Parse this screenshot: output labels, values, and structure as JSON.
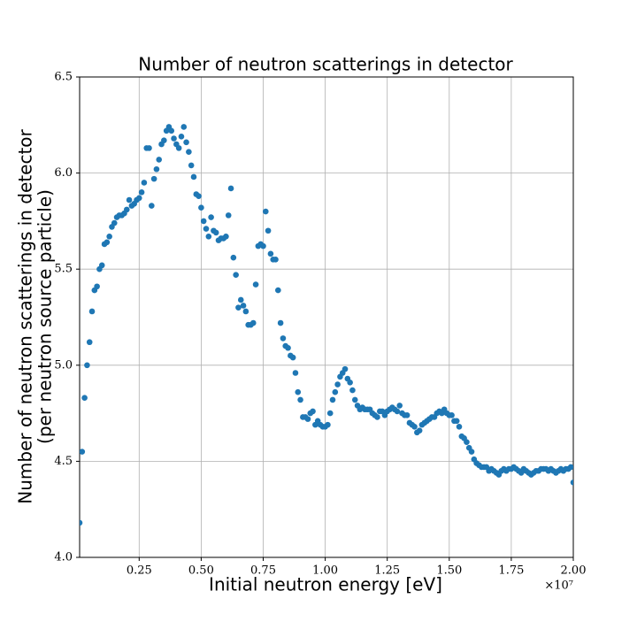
{
  "chart_data": {
    "type": "scatter",
    "title": "Number of neutron scatterings in detector",
    "xlabel": "Initial neutron energy [eV]",
    "ylabel": [
      "Number of neutron scatterings in detector",
      "(per neutron source particle)"
    ],
    "x_offset_label": "×10⁷",
    "color": "#1f77b4",
    "grid": true,
    "xlim": [
      100000,
      20000000
    ],
    "ylim": [
      4.0,
      6.5
    ],
    "xticks": [
      {
        "value": 2500000,
        "label": "0.25"
      },
      {
        "value": 5000000,
        "label": "0.50"
      },
      {
        "value": 7500000,
        "label": "0.75"
      },
      {
        "value": 10000000,
        "label": "1.00"
      },
      {
        "value": 12500000,
        "label": "1.25"
      },
      {
        "value": 15000000,
        "label": "1.50"
      },
      {
        "value": 17500000,
        "label": "1.75"
      },
      {
        "value": 20000000,
        "label": "2.00"
      }
    ],
    "yticks": [
      {
        "value": 4.0,
        "label": "4.0"
      },
      4.5,
      {
        "value": 5.0,
        "label": "5.0"
      },
      5.5,
      {
        "value": 6.0,
        "label": "6.0"
      },
      6.5
    ],
    "x": [
      100000,
      200000,
      300000,
      400000,
      500000,
      600000,
      700000,
      800000,
      900000,
      1000000,
      1100000,
      1200000,
      1300000,
      1400000,
      1500000,
      1600000,
      1700000,
      1800000,
      1900000,
      2000000,
      2100000,
      2200000,
      2300000,
      2400000,
      2500000,
      2600000,
      2700000,
      2800000,
      2900000,
      3000000,
      3100000,
      3200000,
      3300000,
      3400000,
      3500000,
      3600000,
      3700000,
      3800000,
      3900000,
      4000000,
      4100000,
      4200000,
      4300000,
      4400000,
      4500000,
      4600000,
      4700000,
      4800000,
      4900000,
      5000000,
      5100000,
      5200000,
      5300000,
      5400000,
      5500000,
      5600000,
      5700000,
      5800000,
      5900000,
      6000000,
      6100000,
      6200000,
      6300000,
      6400000,
      6500000,
      6600000,
      6700000,
      6800000,
      6900000,
      7000000,
      7100000,
      7200000,
      7300000,
      7400000,
      7500000,
      7600000,
      7700000,
      7800000,
      7900000,
      8000000,
      8100000,
      8200000,
      8300000,
      8400000,
      8500000,
      8600000,
      8700000,
      8800000,
      8900000,
      9000000,
      9100000,
      9200000,
      9300000,
      9400000,
      9500000,
      9600000,
      9700000,
      9800000,
      9900000,
      10000000,
      10100000,
      10200000,
      10300000,
      10400000,
      10500000,
      10600000,
      10700000,
      10800000,
      10900000,
      11000000,
      11100000,
      11200000,
      11300000,
      11400000,
      11500000,
      11600000,
      11700000,
      11800000,
      11900000,
      12000000,
      12100000,
      12200000,
      12300000,
      12400000,
      12500000,
      12600000,
      12700000,
      12800000,
      12900000,
      13000000,
      13100000,
      13200000,
      13300000,
      13400000,
      13500000,
      13600000,
      13700000,
      13800000,
      13900000,
      14000000,
      14100000,
      14200000,
      14300000,
      14400000,
      14500000,
      14600000,
      14700000,
      14800000,
      14900000,
      15000000,
      15100000,
      15200000,
      15300000,
      15400000,
      15500000,
      15600000,
      15700000,
      15800000,
      15900000,
      16000000,
      16100000,
      16200000,
      16300000,
      16400000,
      16500000,
      16600000,
      16700000,
      16800000,
      16900000,
      17000000,
      17100000,
      17200000,
      17300000,
      17400000,
      17500000,
      17600000,
      17700000,
      17800000,
      17900000,
      18000000,
      18100000,
      18200000,
      18300000,
      18400000,
      18500000,
      18600000,
      18700000,
      18800000,
      18900000,
      19000000,
      19100000,
      19200000,
      19300000,
      19400000,
      19500000,
      19600000,
      19700000,
      19800000,
      19900000,
      20000000
    ],
    "values": [
      4.18,
      4.55,
      4.83,
      5.0,
      5.12,
      5.28,
      5.39,
      5.41,
      5.5,
      5.52,
      5.63,
      5.64,
      5.67,
      5.72,
      5.74,
      5.77,
      5.78,
      5.78,
      5.79,
      5.81,
      5.86,
      5.83,
      5.84,
      5.86,
      5.87,
      5.9,
      5.95,
      6.13,
      6.13,
      5.83,
      5.97,
      6.02,
      6.07,
      6.15,
      6.17,
      6.22,
      6.24,
      6.22,
      6.18,
      6.15,
      6.13,
      6.19,
      6.24,
      6.16,
      6.11,
      6.04,
      5.98,
      5.89,
      5.88,
      5.82,
      5.75,
      5.71,
      5.67,
      5.77,
      5.7,
      5.69,
      5.65,
      5.66,
      5.66,
      5.67,
      5.78,
      5.92,
      5.56,
      5.47,
      5.3,
      5.34,
      5.31,
      5.28,
      5.21,
      5.21,
      5.22,
      5.42,
      5.62,
      5.63,
      5.62,
      5.8,
      5.7,
      5.58,
      5.55,
      5.55,
      5.39,
      5.22,
      5.14,
      5.1,
      5.09,
      5.05,
      5.04,
      4.96,
      4.86,
      4.82,
      4.73,
      4.73,
      4.72,
      4.75,
      4.76,
      4.69,
      4.71,
      4.69,
      4.68,
      4.68,
      4.69,
      4.75,
      4.82,
      4.86,
      4.9,
      4.94,
      4.96,
      4.98,
      4.93,
      4.91,
      4.87,
      4.82,
      4.79,
      4.77,
      4.78,
      4.77,
      4.77,
      4.77,
      4.75,
      4.74,
      4.73,
      4.76,
      4.76,
      4.74,
      4.76,
      4.77,
      4.78,
      4.77,
      4.76,
      4.79,
      4.75,
      4.74,
      4.74,
      4.7,
      4.69,
      4.68,
      4.65,
      4.66,
      4.69,
      4.7,
      4.71,
      4.72,
      4.73,
      4.73,
      4.75,
      4.76,
      4.75,
      4.77,
      4.75,
      4.74,
      4.74,
      4.71,
      4.71,
      4.68,
      4.63,
      4.62,
      4.6,
      4.57,
      4.55,
      4.51,
      4.49,
      4.48,
      4.47,
      4.47,
      4.47,
      4.45,
      4.46,
      4.45,
      4.44,
      4.43,
      4.45,
      4.46,
      4.45,
      4.46,
      4.46,
      4.47,
      4.46,
      4.45,
      4.44,
      4.46,
      4.45,
      4.44,
      4.43,
      4.44,
      4.45,
      4.45,
      4.46,
      4.46,
      4.46,
      4.45,
      4.46,
      4.45,
      4.44,
      4.45,
      4.46,
      4.45,
      4.46,
      4.46,
      4.47,
      4.39
    ]
  }
}
